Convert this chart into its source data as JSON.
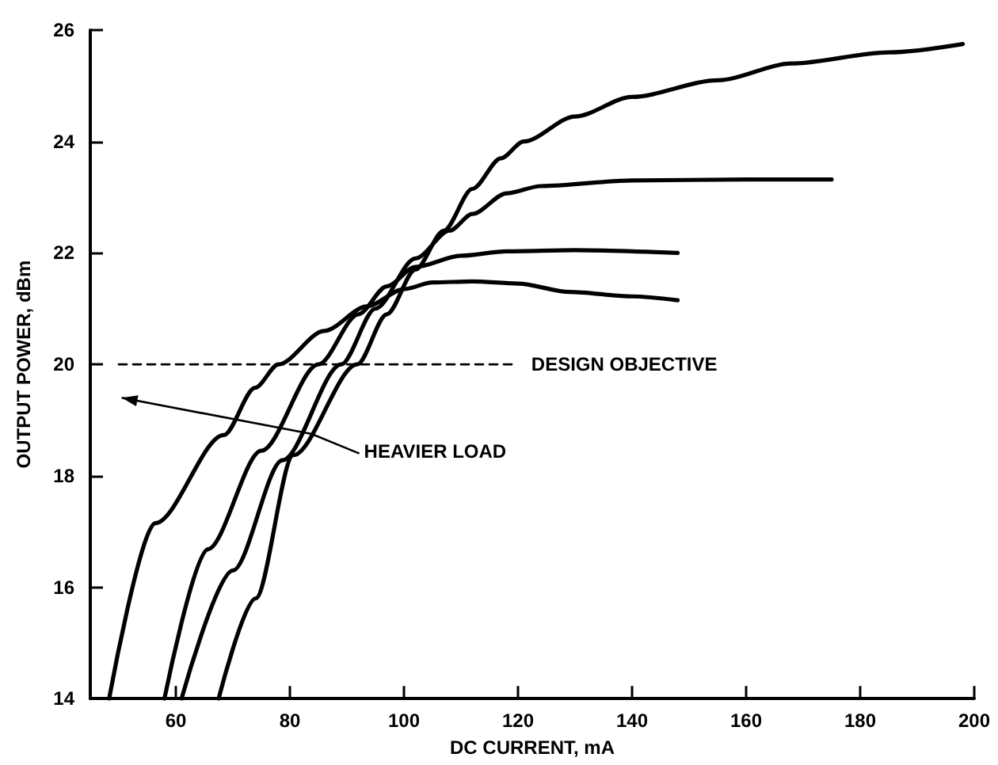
{
  "chart_data": {
    "type": "line",
    "xlabel": "DC CURRENT, mA",
    "ylabel": "OUTPUT POWER, dBm",
    "xlim": [
      45,
      200
    ],
    "ylim": [
      14,
      26
    ],
    "xticks": [
      60,
      80,
      100,
      120,
      140,
      160,
      180,
      200
    ],
    "yticks": [
      14,
      16,
      18,
      20,
      22,
      24,
      26
    ],
    "grid": false,
    "legend": false,
    "marker": "none",
    "line_style": "solid",
    "series": [
      {
        "color": "#000000",
        "x": [
          48.3,
          56.4,
          68.4,
          73.9,
          78,
          86,
          93.5,
          100,
          105,
          112,
          120,
          129,
          140,
          148
        ],
        "values": [
          14,
          17.15,
          18.73,
          19.58,
          20,
          20.6,
          21.04,
          21.35,
          21.47,
          21.49,
          21.45,
          21.3,
          21.22,
          21.15
        ]
      },
      {
        "color": "#000000",
        "x": [
          58,
          65.6,
          75,
          85,
          92,
          97,
          102,
          110,
          118,
          130,
          148
        ],
        "values": [
          14,
          16.68,
          18.45,
          20,
          20.9,
          21.4,
          21.75,
          21.95,
          22.03,
          22.05,
          22
        ]
      },
      {
        "color": "#000000",
        "x": [
          61,
          70,
          78.7,
          89,
          95,
          102,
          108,
          112,
          118,
          124,
          140,
          160,
          175
        ],
        "values": [
          14,
          16.3,
          18.28,
          20,
          21,
          21.9,
          22.4,
          22.7,
          23.07,
          23.2,
          23.3,
          23.32,
          23.32
        ]
      },
      {
        "color": "#000000",
        "x": [
          67.5,
          74,
          80.6,
          91.8,
          97,
          102,
          107,
          112,
          117,
          121,
          130,
          140,
          155,
          168,
          185,
          198
        ],
        "values": [
          14,
          15.8,
          18.37,
          20,
          20.9,
          21.7,
          22.4,
          23.15,
          23.7,
          24,
          24.45,
          24.8,
          25.1,
          25.4,
          25.6,
          25.75
        ]
      },
      {
        "name": "DESIGN OBJECTIVE",
        "color": "#000000",
        "line_style": "dashed",
        "x": [
          50,
          119
        ],
        "values": [
          20,
          20
        ]
      }
    ],
    "annotations": [
      "HEAVIER LOAD"
    ]
  }
}
